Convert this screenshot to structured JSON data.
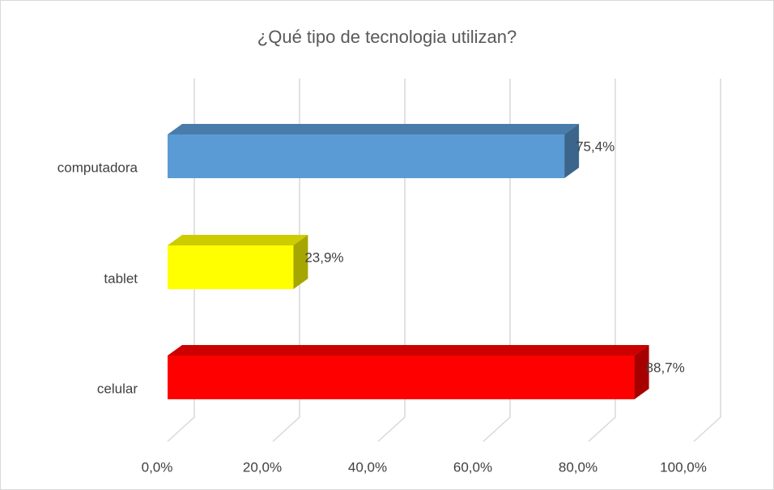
{
  "chart_data": {
    "type": "bar3d_horizontal",
    "title": "¿Qué tipo de tecnologia utilizan?",
    "categories": [
      "computadora",
      "tablet",
      "celular"
    ],
    "values": [
      75.4,
      23.9,
      88.7
    ],
    "value_labels": [
      "75,4%",
      "23,9%",
      "88,7%"
    ],
    "colors": [
      "#5b9bd5",
      "#ffff00",
      "#ff0000"
    ],
    "xlim": [
      0,
      100
    ],
    "xticks": [
      {
        "value": 0,
        "label": "0,0%"
      },
      {
        "value": 20,
        "label": "20,0%"
      },
      {
        "value": 40,
        "label": "40,0%"
      },
      {
        "value": 60,
        "label": "60,0%"
      },
      {
        "value": 80,
        "label": "80,0%"
      },
      {
        "value": 100,
        "label": "100,0%"
      }
    ],
    "grid": true
  }
}
